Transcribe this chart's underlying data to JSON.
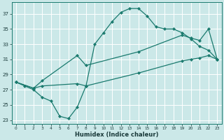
{
  "xlabel": "Humidex (Indice chaleur)",
  "background_color": "#cbe8e8",
  "grid_color": "#b0d8d8",
  "line_color": "#1a7a6e",
  "xlim": [
    -0.5,
    23.5
  ],
  "ylim": [
    22.5,
    38.5
  ],
  "xticks": [
    0,
    1,
    2,
    3,
    4,
    5,
    6,
    7,
    8,
    9,
    10,
    11,
    12,
    13,
    14,
    15,
    16,
    17,
    18,
    19,
    20,
    21,
    22,
    23
  ],
  "yticks": [
    23,
    25,
    27,
    29,
    31,
    33,
    35,
    37
  ],
  "line1_x": [
    0,
    1,
    2,
    3,
    4,
    5,
    6,
    7,
    8,
    9,
    10,
    11,
    12,
    13,
    14,
    15,
    16,
    17,
    18,
    19,
    20,
    21,
    22,
    23
  ],
  "line1_y": [
    28.0,
    27.5,
    27.0,
    26.0,
    25.5,
    23.5,
    23.2,
    24.7,
    27.5,
    33.0,
    34.5,
    36.0,
    37.2,
    37.7,
    37.7,
    36.7,
    35.3,
    35.0,
    35.0,
    34.5,
    33.7,
    32.7,
    32.2,
    31.0
  ],
  "line2_x": [
    0,
    2,
    3,
    7,
    8,
    14,
    19,
    20,
    21,
    22,
    23
  ],
  "line2_y": [
    28.0,
    27.2,
    28.2,
    31.5,
    30.2,
    32.0,
    34.2,
    33.8,
    33.5,
    35.0,
    31.0
  ],
  "line3_x": [
    0,
    2,
    3,
    7,
    8,
    14,
    19,
    20,
    21,
    22,
    23
  ],
  "line3_y": [
    28.0,
    27.2,
    27.5,
    27.8,
    27.5,
    29.2,
    30.8,
    31.0,
    31.2,
    31.5,
    31.0
  ]
}
